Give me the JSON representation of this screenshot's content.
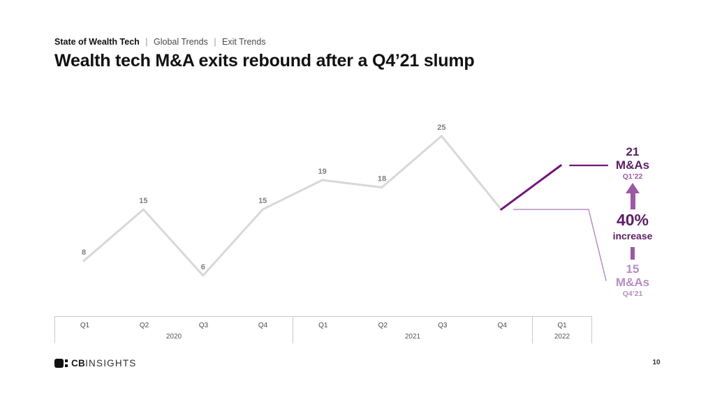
{
  "slide": {
    "breadcrumb": {
      "brand": "State of Wealth Tech",
      "sep": "|",
      "items": [
        "Global Trends",
        "Exit Trends"
      ]
    },
    "title": "Wealth tech M&A exits rebound after a Q4’21 slump",
    "page_number": "10",
    "footer": {
      "logo_bold": "CB",
      "logo_regular": "INSIGHTS",
      "logo_icon": "cbinsights-logo-mark"
    }
  },
  "chart_data": {
    "type": "line",
    "title": "Wealth tech M&A exits rebound after a Q4’21 slump",
    "categories": [
      "Q1 2020",
      "Q2 2020",
      "Q3 2020",
      "Q4 2020",
      "Q1 2021",
      "Q2 2021",
      "Q3 2021",
      "Q4 2021",
      "Q1 2022"
    ],
    "values": [
      8,
      15,
      6,
      15,
      19,
      18,
      25,
      15,
      21
    ],
    "point_labels": [
      "8",
      "15",
      "6",
      "15",
      "19",
      "18",
      "25",
      "",
      ""
    ],
    "year_groups": [
      {
        "year": "2020",
        "quarters": [
          "Q1",
          "Q2",
          "Q3",
          "Q4"
        ]
      },
      {
        "year": "2021",
        "quarters": [
          "Q1",
          "Q2",
          "Q3",
          "Q4"
        ]
      },
      {
        "year": "2022",
        "quarters": [
          "Q1"
        ]
      }
    ],
    "ylim": [
      0,
      28
    ],
    "grid": false,
    "legend": false,
    "line_color": "#d8d8d8",
    "label_color": "#7f7f7f",
    "highlight_segment": {
      "from_index": 7,
      "to_index": 8,
      "color": "#70167a"
    }
  },
  "annotations": {
    "top": {
      "value": "21",
      "unit": "M&As",
      "period": "Q1’22",
      "color": "#5b1f60",
      "period_color": "#9d59a5",
      "leader_color": "#70167a"
    },
    "change": {
      "value": "40%",
      "label": "increase",
      "color": "#5b1f60"
    },
    "bottom": {
      "value": "15",
      "unit": "M&As",
      "period": "Q4’21",
      "color": "#b78ec3",
      "leader_color": "#b78ec3"
    },
    "arrow": {
      "icon": "up-arrow",
      "color": "#9d59a5"
    }
  },
  "colors": {
    "brand_dark_purple": "#5b1f60",
    "line_highlight_purple": "#70167a",
    "medium_purple": "#9d59a5",
    "light_purple": "#b78ec3",
    "series_gray": "#d8d8d8",
    "axis_gray": "#c9c9c9"
  }
}
